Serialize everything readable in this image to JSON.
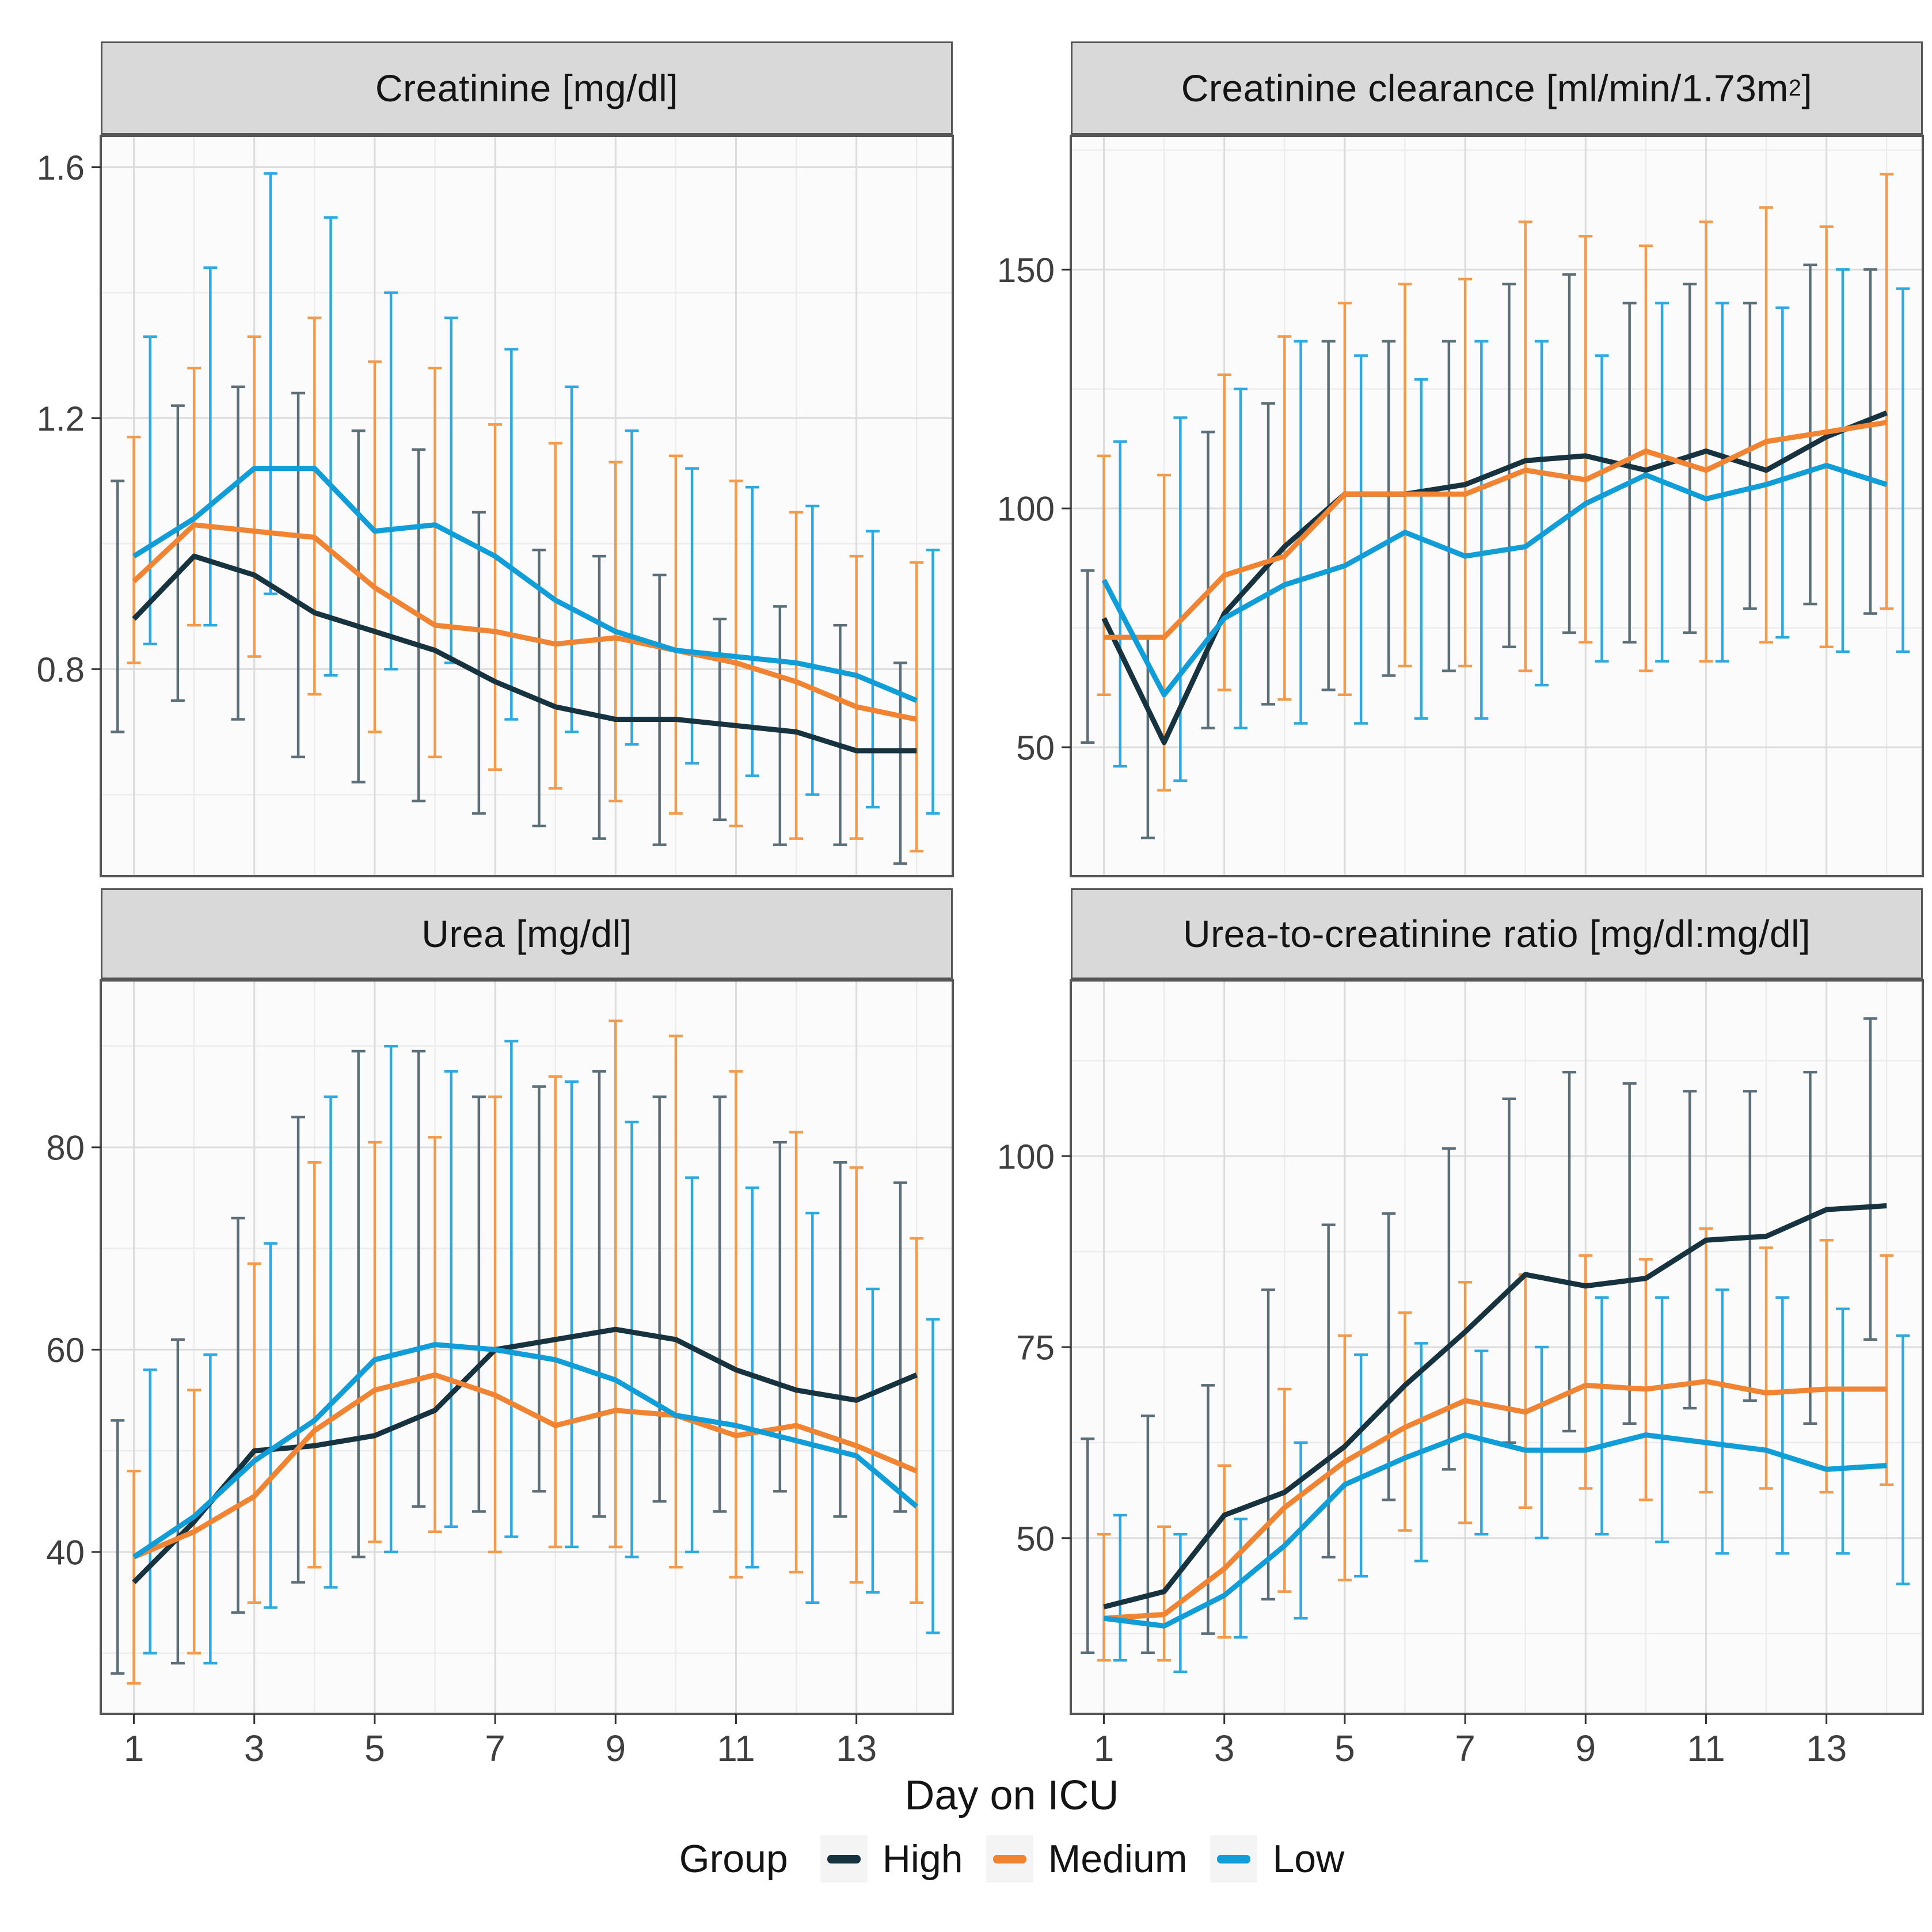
{
  "chart_data": {
    "type": "line",
    "description": "Faceted line chart with error bars; 4 panels of renal lab values over ICU days for three groups",
    "x_label": "Day on ICU",
    "x": [
      1,
      2,
      3,
      4,
      5,
      6,
      7,
      8,
      9,
      10,
      11,
      12,
      13,
      14
    ],
    "x_ticks": [
      {
        "v": 1,
        "label": "1"
      },
      {
        "v": 3,
        "label": "3"
      },
      {
        "v": 5,
        "label": "5"
      },
      {
        "v": 7,
        "label": "7"
      },
      {
        "v": 9,
        "label": "9"
      },
      {
        "v": 11,
        "label": "11"
      },
      {
        "v": 13,
        "label": "13"
      }
    ],
    "xlim": [
      0.45,
      14.6
    ],
    "grid": true,
    "legend": {
      "title": "Group",
      "position": "bottom",
      "items": [
        {
          "label": "High",
          "color": "#16333f"
        },
        {
          "label": "Medium",
          "color": "#f08433"
        },
        {
          "label": "Low",
          "color": "#119dd8"
        }
      ]
    },
    "panels": [
      {
        "title": "Creatinine [mg/dl]",
        "title_pre": "Creatinine [mg/dl]",
        "title_sup": "",
        "title_post": "",
        "ylim": [
          0.47,
          1.65
        ],
        "yticks": [
          {
            "v": 0.8,
            "label": "0.8"
          },
          {
            "v": 1.2,
            "label": "1.2"
          },
          {
            "v": 1.6,
            "label": "1.6"
          }
        ],
        "yminor": [
          0.6,
          1.0,
          1.4
        ],
        "series": [
          {
            "name": "High",
            "line_color": "#16333f",
            "bar_color": "#5c6e77",
            "mean": [
              0.88,
              0.98,
              0.95,
              0.89,
              0.86,
              0.83,
              0.78,
              0.74,
              0.72,
              0.72,
              0.71,
              0.7,
              0.67,
              0.67
            ],
            "lo": [
              0.7,
              0.75,
              0.72,
              0.66,
              0.62,
              0.59,
              0.57,
              0.55,
              0.53,
              0.52,
              0.56,
              0.52,
              0.52,
              0.49
            ],
            "hi": [
              1.1,
              1.22,
              1.25,
              1.24,
              1.18,
              1.15,
              1.05,
              0.99,
              0.98,
              0.95,
              0.88,
              0.9,
              0.87,
              0.81
            ]
          },
          {
            "name": "Medium",
            "line_color": "#f08433",
            "bar_color": "#f39a4b",
            "mean": [
              0.94,
              1.03,
              1.02,
              1.01,
              0.93,
              0.87,
              0.86,
              0.84,
              0.85,
              0.83,
              0.81,
              0.78,
              0.74,
              0.72
            ],
            "lo": [
              0.81,
              0.87,
              0.82,
              0.76,
              0.7,
              0.66,
              0.64,
              0.61,
              0.59,
              0.57,
              0.55,
              0.53,
              0.53,
              0.51
            ],
            "hi": [
              1.17,
              1.28,
              1.33,
              1.36,
              1.29,
              1.28,
              1.19,
              1.16,
              1.13,
              1.14,
              1.1,
              1.05,
              0.98,
              0.97
            ]
          },
          {
            "name": "Low",
            "line_color": "#119dd8",
            "bar_color": "#2ea9e0",
            "mean": [
              0.98,
              1.04,
              1.12,
              1.12,
              1.02,
              1.03,
              0.98,
              0.91,
              0.86,
              0.83,
              0.82,
              0.81,
              0.79,
              0.75
            ],
            "lo": [
              0.84,
              0.87,
              0.92,
              0.79,
              0.8,
              0.81,
              0.72,
              0.7,
              0.68,
              0.65,
              0.63,
              0.6,
              0.58,
              0.57
            ],
            "hi": [
              1.33,
              1.44,
              1.59,
              1.52,
              1.4,
              1.36,
              1.31,
              1.25,
              1.18,
              1.12,
              1.09,
              1.06,
              1.02,
              0.99
            ]
          }
        ]
      },
      {
        "title": "Creatinine clearance [ml/min/1.73m²]",
        "title_pre": "Creatinine clearance [ml/min/1.73m",
        "title_sup": "2",
        "title_post": "]",
        "ylim": [
          23,
          178
        ],
        "yticks": [
          {
            "v": 50,
            "label": "50"
          },
          {
            "v": 100,
            "label": "100"
          },
          {
            "v": 150,
            "label": "150"
          }
        ],
        "yminor": [
          75,
          125,
          175
        ],
        "series": [
          {
            "name": "High",
            "line_color": "#16333f",
            "bar_color": "#5c6e77",
            "mean": [
              77,
              51,
              78,
              92,
              103,
              103,
              105,
              110,
              111,
              108,
              112,
              108,
              115,
              120
            ],
            "lo": [
              51,
              31,
              54,
              59,
              62,
              65,
              66,
              71,
              74,
              72,
              74,
              79,
              80,
              78
            ],
            "hi": [
              87,
              73,
              116,
              122,
              135,
              135,
              135,
              147,
              149,
              143,
              147,
              143,
              151,
              150
            ]
          },
          {
            "name": "Medium",
            "line_color": "#f08433",
            "bar_color": "#f39a4b",
            "mean": [
              73,
              73,
              86,
              90,
              103,
              103,
              103,
              108,
              106,
              112,
              108,
              114,
              116,
              118
            ],
            "lo": [
              61,
              41,
              62,
              60,
              61,
              67,
              67,
              66,
              72,
              66,
              68,
              72,
              71,
              79
            ],
            "hi": [
              111,
              107,
              128,
              136,
              143,
              147,
              148,
              160,
              157,
              155,
              160,
              163,
              159,
              170
            ]
          },
          {
            "name": "Low",
            "line_color": "#119dd8",
            "bar_color": "#2ea9e0",
            "mean": [
              85,
              61,
              77,
              84,
              88,
              95,
              90,
              92,
              101,
              107,
              102,
              105,
              109,
              105
            ],
            "lo": [
              46,
              43,
              54,
              55,
              55,
              56,
              56,
              63,
              68,
              68,
              68,
              73,
              70,
              70
            ],
            "hi": [
              114,
              119,
              125,
              135,
              132,
              127,
              135,
              135,
              132,
              143,
              143,
              142,
              150,
              146
            ]
          }
        ]
      },
      {
        "title": "Urea [mg/dl]",
        "title_pre": "Urea [mg/dl]",
        "title_sup": "",
        "title_post": "",
        "ylim": [
          24,
          96.5
        ],
        "yticks": [
          {
            "v": 40,
            "label": "40"
          },
          {
            "v": 60,
            "label": "60"
          },
          {
            "v": 80,
            "label": "80"
          }
        ],
        "yminor": [
          30,
          50,
          70,
          90
        ],
        "series": [
          {
            "name": "High",
            "line_color": "#16333f",
            "bar_color": "#5c6e77",
            "mean": [
              37,
              43,
              50,
              50.5,
              51.5,
              54,
              60,
              61,
              62,
              61,
              58,
              56,
              55,
              57.5
            ],
            "lo": [
              28,
              29,
              34,
              37,
              39.5,
              44.5,
              44,
              46,
              43.5,
              45,
              44,
              46,
              43.5,
              44
            ],
            "hi": [
              53,
              61,
              73,
              83,
              89.5,
              89.5,
              85,
              86,
              87.5,
              85,
              85,
              80.5,
              78.5,
              76.5
            ]
          },
          {
            "name": "Medium",
            "line_color": "#f08433",
            "bar_color": "#f39a4b",
            "mean": [
              39.5,
              42,
              45.5,
              52,
              56,
              57.5,
              55.5,
              52.5,
              54,
              53.5,
              51.5,
              52.5,
              50.5,
              48
            ],
            "lo": [
              27,
              30,
              35,
              38.5,
              41,
              42,
              40,
              40.5,
              40.5,
              38.5,
              37.5,
              38,
              37,
              35
            ],
            "hi": [
              48,
              56,
              68.5,
              78.5,
              80.5,
              81,
              85,
              87,
              92.5,
              91,
              87.5,
              81.5,
              78,
              71
            ]
          },
          {
            "name": "Low",
            "line_color": "#119dd8",
            "bar_color": "#2ea9e0",
            "mean": [
              39.5,
              43.5,
              49,
              53,
              59,
              60.5,
              60,
              59,
              57,
              53.5,
              52.5,
              51,
              49.5,
              44.5
            ],
            "lo": [
              30,
              29,
              34.5,
              36.5,
              40,
              42.5,
              41.5,
              40.5,
              39.5,
              40,
              38.5,
              35,
              36,
              32
            ],
            "hi": [
              58,
              59.5,
              70.5,
              85,
              90,
              87.5,
              90.5,
              86.5,
              82.5,
              77,
              76,
              73.5,
              66,
              63
            ]
          }
        ]
      },
      {
        "title": "Urea-to-creatinine ratio [mg/dl:mg/dl]",
        "title_pre": "Urea-to-creatinine ratio [mg/dl:mg/dl]",
        "title_sup": "",
        "title_post": "",
        "ylim": [
          27,
          123
        ],
        "yticks": [
          {
            "v": 50,
            "label": "50"
          },
          {
            "v": 75,
            "label": "75"
          },
          {
            "v": 100,
            "label": "100"
          }
        ],
        "yminor": [
          37.5,
          62.5,
          87.5,
          112.5
        ],
        "series": [
          {
            "name": "High",
            "line_color": "#16333f",
            "bar_color": "#5c6e77",
            "mean": [
              41,
              43,
              53,
              56,
              62,
              70,
              77,
              84.5,
              83,
              84,
              89,
              89.5,
              93,
              93.5
            ],
            "lo": [
              35,
              35,
              37.5,
              42,
              47.5,
              55,
              59,
              62.5,
              64,
              65,
              67,
              68,
              65,
              76
            ],
            "hi": [
              63,
              66,
              70,
              82.5,
              91,
              92.5,
              101,
              107.5,
              111,
              109.5,
              108.5,
              108.5,
              111,
              118
            ]
          },
          {
            "name": "Medium",
            "line_color": "#f08433",
            "bar_color": "#f39a4b",
            "mean": [
              39.5,
              40,
              46,
              54,
              60,
              64.5,
              68,
              66.5,
              70,
              69.5,
              70.5,
              69,
              69.5,
              69.5
            ],
            "lo": [
              34,
              34,
              37,
              43,
              44.5,
              51,
              52,
              54,
              56.5,
              55,
              56,
              56.5,
              56,
              57
            ],
            "hi": [
              50.5,
              51.5,
              59.5,
              69.5,
              76.5,
              79.5,
              83.5,
              84.5,
              87,
              86.5,
              90.5,
              88,
              89,
              87
            ]
          },
          {
            "name": "Low",
            "line_color": "#119dd8",
            "bar_color": "#2ea9e0",
            "mean": [
              39.5,
              38.5,
              42.5,
              49,
              57,
              60.5,
              63.5,
              61.5,
              61.5,
              63.5,
              62.5,
              61.5,
              59,
              59.5
            ],
            "lo": [
              34,
              32.5,
              37,
              39.5,
              45,
              47,
              50.5,
              50,
              50.5,
              49.5,
              48,
              48,
              48,
              44
            ],
            "hi": [
              53,
              50.5,
              52.5,
              62.5,
              74,
              75.5,
              74.5,
              75,
              81.5,
              81.5,
              82.5,
              81.5,
              80,
              76.5
            ]
          }
        ]
      }
    ],
    "style": {
      "panel_bg": "#fbfbfb",
      "grid_major": "#dcdcdc",
      "grid_minor": "#ececec",
      "panel_border": "#565656",
      "tick_label_color": "#3f3f3f",
      "strip_bg": "#d9d9d9"
    }
  }
}
